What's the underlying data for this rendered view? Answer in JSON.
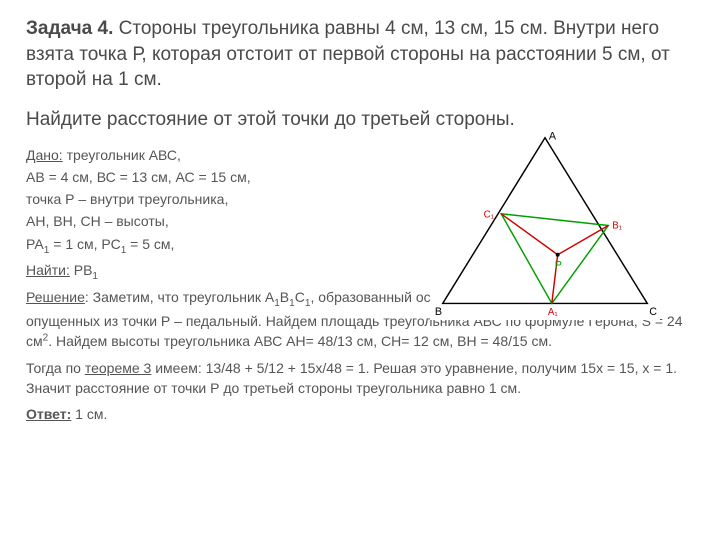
{
  "title": {
    "label": "Задача",
    "num": "4.",
    "text": "Стороны треугольника равны 4 см, 13 см, 15 см. Внутри него взята точка Р, которая отстоит от первой стороны на расстоянии 5 см, от второй на 1 см."
  },
  "find_line": "Найдите расстояние от этой точки до третьей стороны.",
  "given": {
    "heading": "Дано:",
    "l1": " треугольник АВС,",
    "l2": "АВ = 4 см, ВС = 13 см, АС = 15 см,",
    "l3": "точка Р – внутри треугольника,",
    "l4": "АН, ВН, СН – высоты,",
    "l5_a": "РА",
    "l5_b": " = 1 см, РС",
    "l5_c": " = 5 см,",
    "find_label": "Найти:",
    "find_val": " РВ"
  },
  "solution": {
    "heading": "Решение",
    "p1a": ": Заметим, что треугольник А",
    "p1b": "В",
    "p1c": "С",
    "p1d": ", образованный основаниями перпендикуляров, опущенных из точки Р  – педальный. Найдем площадь треугольника АВС по формуле Герона,  S = 24 см",
    "p1e": ". Найдем высоты треугольника АВС АН= 48/13 см, СН= 12 см, ВН = 48/15 см.",
    "p2a": "Тогда по ",
    "p2_link": "теореме 3",
    "p2b": " имеем: 13/48 + 5/12 + 15х/48 = 1. Решая это уравнение, получим 15х = 15, х = 1. Значит расстояние от точки Р до третьей стороны треугольника равно 1 см.",
    "answer_label": "Ответ:",
    "answer_val": " 1 см."
  },
  "figure": {
    "labels": {
      "A": "A",
      "B": "B",
      "C": "C",
      "A1": "A₁",
      "B1": "B₁",
      "C1": "C₁",
      "P": "P"
    },
    "colors": {
      "outer_stroke": "#000000",
      "inner_stroke": "#00a000",
      "pedal_stroke": "#d00000",
      "text": "#000000",
      "label_red": "#d00000",
      "label_green": "#00a000"
    },
    "outer": {
      "A": [
        115,
        8
      ],
      "B": [
        10,
        178
      ],
      "C": [
        220,
        178
      ]
    },
    "inner": {
      "B1": [
        180,
        98
      ],
      "C1": [
        70,
        86
      ],
      "A1": [
        122,
        178
      ]
    },
    "P": [
      128,
      128
    ]
  }
}
